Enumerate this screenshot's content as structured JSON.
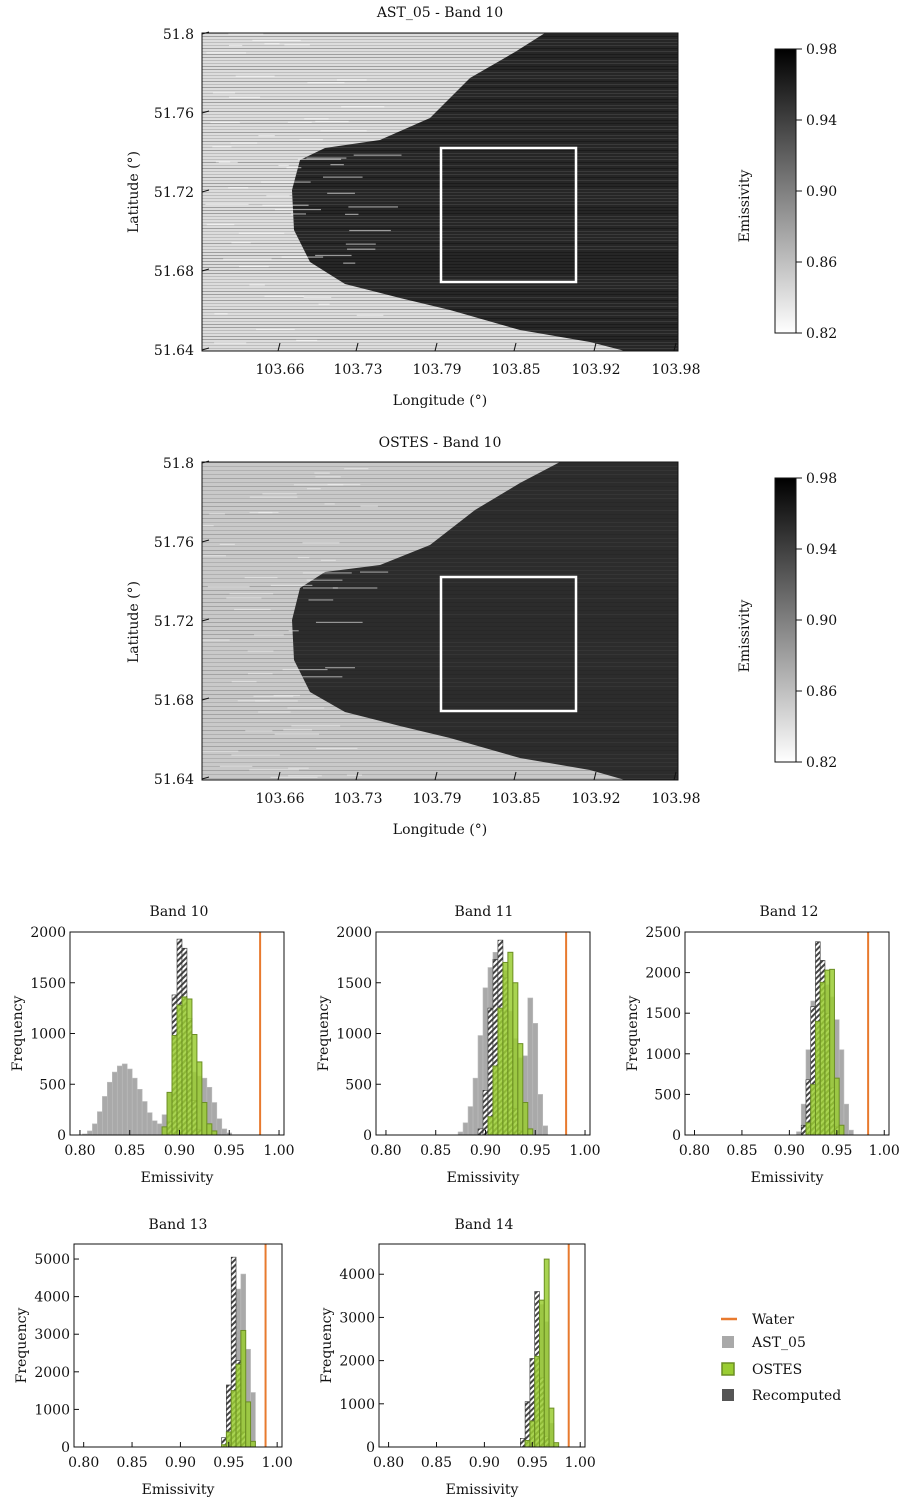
{
  "maps": [
    {
      "title": "AST_05 - Band 10",
      "xlabel": "Longitude (°)",
      "ylabel": "Latitude (°)",
      "x_ticks": [
        "103.66",
        "103.73",
        "103.79",
        "103.85",
        "103.92",
        "103.98"
      ],
      "y_ticks": [
        "51.8",
        "51.76",
        "51.72",
        "51.68",
        "51.64"
      ],
      "colorbar": {
        "label": "Emissivity",
        "ticks": [
          "0.98",
          "0.94",
          "0.90",
          "0.86",
          "0.82"
        ],
        "range": [
          0.82,
          0.98
        ],
        "cmap_low": "#ffffff",
        "cmap_high": "#000000"
      },
      "style": "striped"
    },
    {
      "title": "OSTES - Band 10",
      "xlabel": "Longitude (°)",
      "ylabel": "Latitude (°)",
      "x_ticks": [
        "103.66",
        "103.73",
        "103.79",
        "103.85",
        "103.92",
        "103.98"
      ],
      "y_ticks": [
        "51.8",
        "51.76",
        "51.72",
        "51.68",
        "51.64"
      ],
      "colorbar": {
        "label": "Emissivity",
        "ticks": [
          "0.98",
          "0.94",
          "0.90",
          "0.86",
          "0.82"
        ],
        "range": [
          0.82,
          0.98
        ],
        "cmap_low": "#ffffff",
        "cmap_high": "#000000"
      },
      "style": "smooth"
    }
  ],
  "legend": {
    "items": [
      {
        "label": "Water",
        "kind": "line",
        "color": "#e87a2e"
      },
      {
        "label": "AST_05",
        "kind": "box",
        "color": "#a9a9a9"
      },
      {
        "label": "OSTES",
        "kind": "box",
        "color": "#9acd32"
      },
      {
        "label": "Recomputed",
        "kind": "box",
        "color": "#555555"
      }
    ]
  },
  "colors": {
    "water": "#e87a2e",
    "ast05": "#a9a9a9",
    "ostes": "#9acd32",
    "ostes_edge": "#6b8e23",
    "recomputed": "#4a4a4a"
  },
  "chart_data": [
    {
      "type": "bar",
      "title": "Band 10",
      "xlabel": "Emissivity",
      "ylabel": "Frequency",
      "xlim": [
        0.79,
        1.005
      ],
      "ylim": [
        0,
        2000
      ],
      "x_ticks": [
        "0.80",
        "0.85",
        "0.90",
        "0.95",
        "1.00"
      ],
      "y_ticks": [
        "0",
        "500",
        "1000",
        "1500",
        "2000"
      ],
      "water": 0.981,
      "bin_width": 0.005,
      "series": [
        {
          "name": "AST_05",
          "mode": "list",
          "values": [
            [
              0.805,
              10
            ],
            [
              0.81,
              40
            ],
            [
              0.815,
              110
            ],
            [
              0.82,
              230
            ],
            [
              0.825,
              380
            ],
            [
              0.83,
              520
            ],
            [
              0.835,
              620
            ],
            [
              0.84,
              680
            ],
            [
              0.845,
              700
            ],
            [
              0.85,
              650
            ],
            [
              0.855,
              560
            ],
            [
              0.86,
              450
            ],
            [
              0.865,
              330
            ],
            [
              0.87,
              220
            ],
            [
              0.875,
              140
            ],
            [
              0.88,
              110
            ],
            [
              0.885,
              200
            ],
            [
              0.89,
              420
            ],
            [
              0.895,
              700
            ],
            [
              0.9,
              880
            ],
            [
              0.905,
              850
            ],
            [
              0.91,
              720
            ],
            [
              0.915,
              620
            ],
            [
              0.92,
              580
            ],
            [
              0.925,
              560
            ],
            [
              0.93,
              470
            ],
            [
              0.935,
              320
            ],
            [
              0.94,
              160
            ],
            [
              0.945,
              60
            ],
            [
              0.95,
              20
            ]
          ]
        },
        {
          "name": "Recomputed",
          "mode": "list",
          "values": [
            [
              0.89,
              130
            ],
            [
              0.895,
              1380
            ],
            [
              0.9,
              1930
            ],
            [
              0.905,
              1840
            ],
            [
              0.91,
              1150
            ],
            [
              0.915,
              340
            ],
            [
              0.92,
              50
            ]
          ]
        },
        {
          "name": "OSTES",
          "mode": "list",
          "values": [
            [
              0.885,
              80
            ],
            [
              0.89,
              420
            ],
            [
              0.895,
              980
            ],
            [
              0.9,
              1280
            ],
            [
              0.905,
              1360
            ],
            [
              0.91,
              1340
            ],
            [
              0.915,
              990
            ],
            [
              0.92,
              720
            ],
            [
              0.925,
              320
            ],
            [
              0.93,
              110
            ],
            [
              0.935,
              40
            ]
          ]
        }
      ]
    },
    {
      "type": "bar",
      "title": "Band 11",
      "xlabel": "Emissivity",
      "ylabel": "Frequency",
      "xlim": [
        0.79,
        1.005
      ],
      "ylim": [
        0,
        2000
      ],
      "x_ticks": [
        "0.80",
        "0.85",
        "0.90",
        "0.95",
        "1.00"
      ],
      "y_ticks": [
        "0",
        "500",
        "1000",
        "1500",
        "2000"
      ],
      "water": 0.981,
      "bin_width": 0.005,
      "series": [
        {
          "name": "AST_05",
          "mode": "list",
          "values": [
            [
              0.875,
              30
            ],
            [
              0.88,
              120
            ],
            [
              0.885,
              280
            ],
            [
              0.89,
              560
            ],
            [
              0.895,
              980
            ],
            [
              0.9,
              1450
            ],
            [
              0.905,
              1650
            ],
            [
              0.91,
              1800
            ],
            [
              0.915,
              1860
            ],
            [
              0.92,
              1620
            ],
            [
              0.925,
              1220
            ],
            [
              0.93,
              950
            ],
            [
              0.935,
              760
            ],
            [
              0.94,
              780
            ],
            [
              0.945,
              1350
            ],
            [
              0.95,
              1100
            ],
            [
              0.955,
              400
            ],
            [
              0.96,
              90
            ]
          ]
        },
        {
          "name": "Recomputed",
          "mode": "list",
          "values": [
            [
              0.895,
              60
            ],
            [
              0.9,
              440
            ],
            [
              0.905,
              1250
            ],
            [
              0.91,
              1730
            ],
            [
              0.915,
              1920
            ],
            [
              0.92,
              1550
            ],
            [
              0.925,
              850
            ],
            [
              0.93,
              260
            ],
            [
              0.935,
              40
            ]
          ]
        },
        {
          "name": "OSTES",
          "mode": "list",
          "values": [
            [
              0.905,
              180
            ],
            [
              0.91,
              680
            ],
            [
              0.915,
              1250
            ],
            [
              0.92,
              1700
            ],
            [
              0.925,
              1800
            ],
            [
              0.93,
              1500
            ],
            [
              0.935,
              900
            ],
            [
              0.94,
              320
            ],
            [
              0.945,
              60
            ]
          ]
        }
      ]
    },
    {
      "type": "bar",
      "title": "Band 12",
      "xlabel": "Emissivity",
      "ylabel": "Frequency",
      "xlim": [
        0.79,
        1.005
      ],
      "ylim": [
        0,
        2500
      ],
      "x_ticks": [
        "0.80",
        "0.85",
        "0.90",
        "0.95",
        "1.00"
      ],
      "y_ticks": [
        "0",
        "500",
        "1000",
        "1500",
        "2000",
        "2500"
      ],
      "water": 0.983,
      "bin_width": 0.005,
      "series": [
        {
          "name": "AST_05",
          "mode": "list",
          "values": [
            [
              0.91,
              40
            ],
            [
              0.915,
              380
            ],
            [
              0.92,
              1050
            ],
            [
              0.925,
              1650
            ],
            [
              0.93,
              1900
            ],
            [
              0.935,
              2000
            ],
            [
              0.94,
              1850
            ],
            [
              0.945,
              1700
            ],
            [
              0.95,
              1420
            ],
            [
              0.955,
              1050
            ],
            [
              0.96,
              380
            ],
            [
              0.965,
              60
            ]
          ]
        },
        {
          "name": "Recomputed",
          "mode": "list",
          "values": [
            [
              0.915,
              120
            ],
            [
              0.92,
              680
            ],
            [
              0.925,
              1580
            ],
            [
              0.93,
              2380
            ],
            [
              0.935,
              2150
            ],
            [
              0.94,
              1500
            ],
            [
              0.945,
              580
            ],
            [
              0.95,
              100
            ]
          ]
        },
        {
          "name": "OSTES",
          "mode": "list",
          "values": [
            [
              0.92,
              150
            ],
            [
              0.925,
              620
            ],
            [
              0.93,
              1400
            ],
            [
              0.935,
              1880
            ],
            [
              0.94,
              2030
            ],
            [
              0.945,
              2040
            ],
            [
              0.95,
              700
            ],
            [
              0.955,
              120
            ]
          ]
        }
      ]
    },
    {
      "type": "bar",
      "title": "Band 13",
      "xlabel": "Emissivity",
      "ylabel": "Frequency",
      "xlim": [
        0.79,
        1.005
      ],
      "ylim": [
        0,
        5400
      ],
      "x_ticks": [
        "0.80",
        "0.85",
        "0.90",
        "0.95",
        "1.00"
      ],
      "y_ticks": [
        "0",
        "1000",
        "2000",
        "3000",
        "4000",
        "5000"
      ],
      "water": 0.988,
      "bin_width": 0.005,
      "series": [
        {
          "name": "AST_05",
          "mode": "list",
          "values": [
            [
              0.945,
              80
            ],
            [
              0.95,
              650
            ],
            [
              0.955,
              2400
            ],
            [
              0.96,
              4200
            ],
            [
              0.965,
              4600
            ],
            [
              0.97,
              2600
            ],
            [
              0.975,
              1450
            ]
          ]
        },
        {
          "name": "Recomputed",
          "mode": "list",
          "values": [
            [
              0.945,
              250
            ],
            [
              0.95,
              1650
            ],
            [
              0.955,
              5050
            ],
            [
              0.96,
              2300
            ],
            [
              0.965,
              400
            ]
          ]
        },
        {
          "name": "OSTES",
          "mode": "list",
          "values": [
            [
              0.945,
              60
            ],
            [
              0.95,
              400
            ],
            [
              0.955,
              1500
            ],
            [
              0.96,
              2200
            ],
            [
              0.965,
              3100
            ],
            [
              0.97,
              1200
            ],
            [
              0.975,
              150
            ]
          ]
        }
      ]
    },
    {
      "type": "bar",
      "title": "Band 14",
      "xlabel": "Emissivity",
      "ylabel": "Frequency",
      "xlim": [
        0.79,
        1.005
      ],
      "ylim": [
        0,
        4700
      ],
      "x_ticks": [
        "0.80",
        "0.85",
        "0.90",
        "0.95",
        "1.00"
      ],
      "y_ticks": [
        "0",
        "1000",
        "2000",
        "3000",
        "4000"
      ],
      "water": 0.988,
      "bin_width": 0.005,
      "series": [
        {
          "name": "AST_05",
          "mode": "list",
          "values": [
            [
              0.94,
              90
            ],
            [
              0.945,
              700
            ],
            [
              0.95,
              1650
            ],
            [
              0.955,
              3350
            ],
            [
              0.96,
              3300
            ],
            [
              0.965,
              2900
            ],
            [
              0.97,
              550
            ],
            [
              0.975,
              80
            ]
          ]
        },
        {
          "name": "Recomputed",
          "mode": "list",
          "values": [
            [
              0.94,
              200
            ],
            [
              0.945,
              1050
            ],
            [
              0.95,
              2050
            ],
            [
              0.955,
              3600
            ],
            [
              0.96,
              1600
            ],
            [
              0.965,
              250
            ]
          ]
        },
        {
          "name": "OSTES",
          "mode": "list",
          "values": [
            [
              0.945,
              150
            ],
            [
              0.95,
              600
            ],
            [
              0.955,
              2100
            ],
            [
              0.96,
              3400
            ],
            [
              0.965,
              4350
            ],
            [
              0.97,
              900
            ],
            [
              0.975,
              100
            ]
          ]
        }
      ]
    }
  ]
}
